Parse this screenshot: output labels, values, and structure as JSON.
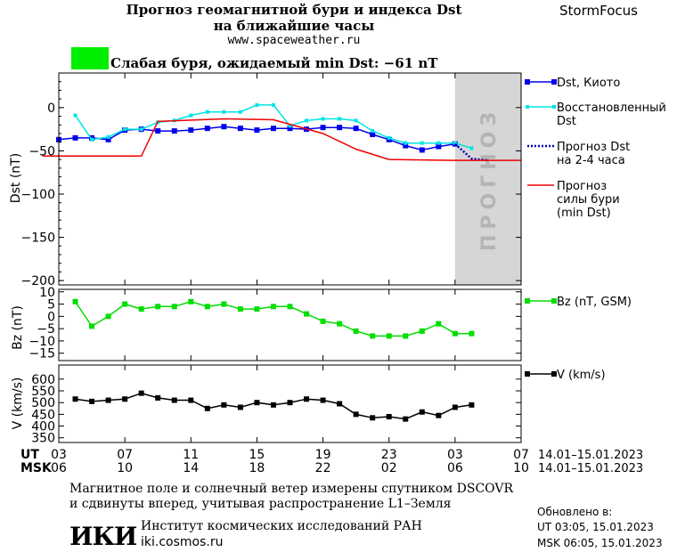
{
  "header": {
    "title_line1": "Прогноз геомагнитной бури и индекса Dst",
    "title_line2": "на ближайшие часы",
    "site": "www.spaceweather.ru",
    "brand": "StormFocus"
  },
  "status": {
    "color": "#00ee00",
    "text": "Слабая буря, ожидаемый min Dst: −61 nT"
  },
  "forecast_band_label": "ПРОГНОЗ",
  "time_axis": {
    "ut_label": "UT",
    "msk_label": "MSK",
    "ut_ticks": [
      "03",
      "07",
      "11",
      "15",
      "19",
      "23",
      "03",
      "07"
    ],
    "msk_ticks": [
      "06",
      "10",
      "14",
      "18",
      "22",
      "02",
      "06",
      "10"
    ],
    "ut_range": "14.01–15.01.2023",
    "msk_range": "14.01–15.01.2023"
  },
  "footer": {
    "note_line1": "Магнитное поле и солнечный ветер измерены спутником DSCOVR",
    "note_line2": "и сдвинуты вперед, учитывая распространение L1–Земля",
    "logo": "ИКИ",
    "institute": "Институт космических исследований РАН",
    "institute_site": "iki.cosmos.ru",
    "updated_label": "Обновлено в:",
    "updated_ut": "UT   03:05, 15.01.2023",
    "updated_msk": "MSK 06:05, 15.01.2023"
  },
  "chart_data": [
    {
      "type": "line",
      "ylabel": "Dst (nT)",
      "ylim": [
        -205,
        40
      ],
      "yticks": [
        0,
        -50,
        -100,
        -150,
        -200
      ],
      "x_hours_ut": [
        3,
        27
      ],
      "forecast_band_hours": [
        3,
        7
      ],
      "series": [
        {
          "name": "Dst, Киото",
          "color": "#0000ee",
          "x": [
            3,
            4,
            5,
            6,
            7,
            8,
            9,
            10,
            11,
            12,
            13,
            14,
            15,
            16,
            17,
            18,
            19,
            20,
            21,
            22,
            23,
            24,
            25,
            26,
            27
          ],
          "values": [
            -37,
            -35,
            -35,
            -37,
            -26,
            -25,
            -27,
            -27,
            -26,
            -24,
            -22,
            -24,
            -26,
            -24,
            -24,
            -25,
            -23,
            -23,
            -24,
            -31,
            -37,
            -44,
            -49,
            -45,
            -42
          ]
        },
        {
          "name": "Восстановленный Dst",
          "color": "#00e5e5",
          "x": [
            4,
            5,
            6,
            7,
            8,
            9,
            10,
            11,
            12,
            13,
            14,
            15,
            16,
            17,
            18,
            19,
            20,
            21,
            22,
            23,
            24,
            25,
            26,
            27,
            28
          ],
          "values": [
            -9,
            -37,
            -34,
            -25,
            -25,
            -17,
            -15,
            -9,
            -5,
            -5,
            -5,
            3,
            3,
            -21,
            -15,
            -13,
            -13,
            -15,
            -27,
            -35,
            -41,
            -41,
            -41,
            -41,
            -47
          ]
        },
        {
          "name": "Прогноз Dst на 2-4 часа",
          "color": "#0000bb",
          "x": [
            27,
            28,
            29
          ],
          "values": [
            -42,
            -59,
            -61
          ]
        },
        {
          "name": "Прогноз силы бури (min Dst)",
          "color": "#ee0000",
          "x": [
            2,
            8,
            9,
            13,
            16,
            19,
            21,
            23,
            27,
            31
          ],
          "values": [
            -56,
            -56,
            -16,
            -13,
            -14,
            -30,
            -48,
            -60,
            -61,
            -61
          ]
        }
      ]
    },
    {
      "type": "line",
      "ylabel": "Bz (nT)",
      "ylim": [
        -18,
        11
      ],
      "yticks": [
        10,
        5,
        0,
        -5,
        -10,
        -15
      ],
      "series": [
        {
          "name": "Bz (nT, GSM)",
          "color": "#00dd00",
          "x": [
            4,
            5,
            6,
            7,
            8,
            9,
            10,
            11,
            12,
            13,
            14,
            15,
            16,
            17,
            18,
            19,
            20,
            21,
            22,
            23,
            24,
            25,
            26,
            27,
            28
          ],
          "values": [
            6,
            -4,
            0,
            5,
            3,
            4,
            4,
            6,
            4,
            5,
            3,
            3,
            4,
            4,
            1,
            -2,
            -3,
            -6,
            -8,
            -8,
            -8,
            -6,
            -3,
            -7,
            -7
          ]
        }
      ]
    },
    {
      "type": "line",
      "ylabel": "V (km/s)",
      "ylim": [
        330,
        660
      ],
      "yticks": [
        600,
        550,
        500,
        450,
        400,
        350
      ],
      "series": [
        {
          "name": "V (km/s)",
          "color": "#000000",
          "x": [
            4,
            5,
            6,
            7,
            8,
            9,
            10,
            11,
            12,
            13,
            14,
            15,
            16,
            17,
            18,
            19,
            20,
            21,
            22,
            23,
            24,
            25,
            26,
            27,
            28
          ],
          "values": [
            515,
            505,
            510,
            515,
            540,
            520,
            510,
            510,
            475,
            490,
            480,
            500,
            490,
            500,
            515,
            510,
            495,
            450,
            435,
            440,
            430,
            460,
            445,
            480,
            490
          ]
        }
      ]
    }
  ]
}
